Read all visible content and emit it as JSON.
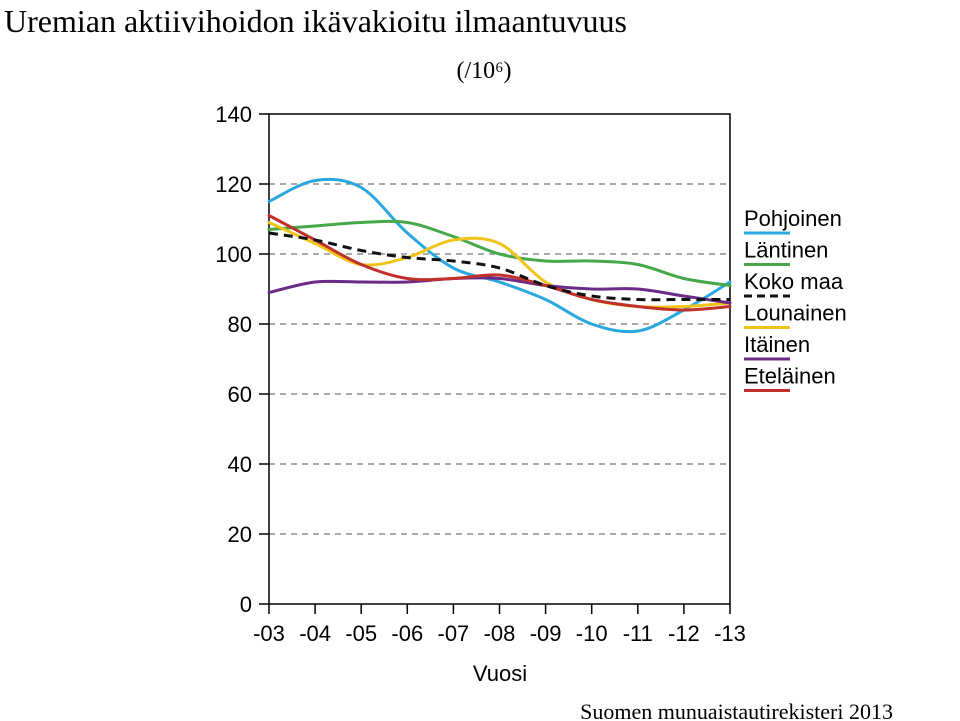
{
  "chart_data": {
    "type": "line",
    "title": "Uremian aktiivihoidon ikävakioitu ilmaantuvuus",
    "subtitle": "(/10⁶)",
    "xlabel": "Vuosi",
    "ylabel": "",
    "source": "Suomen munuaistautirekisteri 2013",
    "categories": [
      "-03",
      "-04",
      "-05",
      "-06",
      "-07",
      "-08",
      "-09",
      "-10",
      "-11",
      "-12",
      "-13"
    ],
    "yticks": [
      0,
      20,
      40,
      60,
      80,
      100,
      120,
      140
    ],
    "ylim": [
      0,
      140
    ],
    "grid": "dashed horizontal",
    "legend_position": "right",
    "series": [
      {
        "name": "Pohjoinen",
        "color": "#29a8e0",
        "dash": false,
        "values": [
          115,
          121,
          119,
          106,
          96,
          92,
          87,
          80,
          78,
          84,
          92
        ]
      },
      {
        "name": "Läntinen",
        "color": "#46a84a",
        "dash": false,
        "values": [
          107,
          108,
          109,
          109,
          105,
          100,
          98,
          98,
          97,
          93,
          91
        ]
      },
      {
        "name": "Koko maa",
        "color": "#111111",
        "dash": true,
        "values": [
          106,
          104,
          101,
          99,
          98,
          96,
          91,
          88,
          87,
          87,
          87
        ]
      },
      {
        "name": "Lounainen",
        "color": "#f0c419",
        "dash": false,
        "values": [
          109,
          103,
          97,
          99,
          104,
          103,
          92,
          87,
          85,
          85,
          86
        ]
      },
      {
        "name": "Itäinen",
        "color": "#6a2c86",
        "dash": false,
        "values": [
          89,
          92,
          92,
          92,
          93,
          93,
          91,
          90,
          90,
          88,
          86
        ]
      },
      {
        "name": "Eteläinen",
        "color": "#c0312c",
        "dash": false,
        "values": [
          111,
          104,
          97,
          93,
          93,
          94,
          91,
          87,
          85,
          84,
          85
        ]
      }
    ]
  }
}
